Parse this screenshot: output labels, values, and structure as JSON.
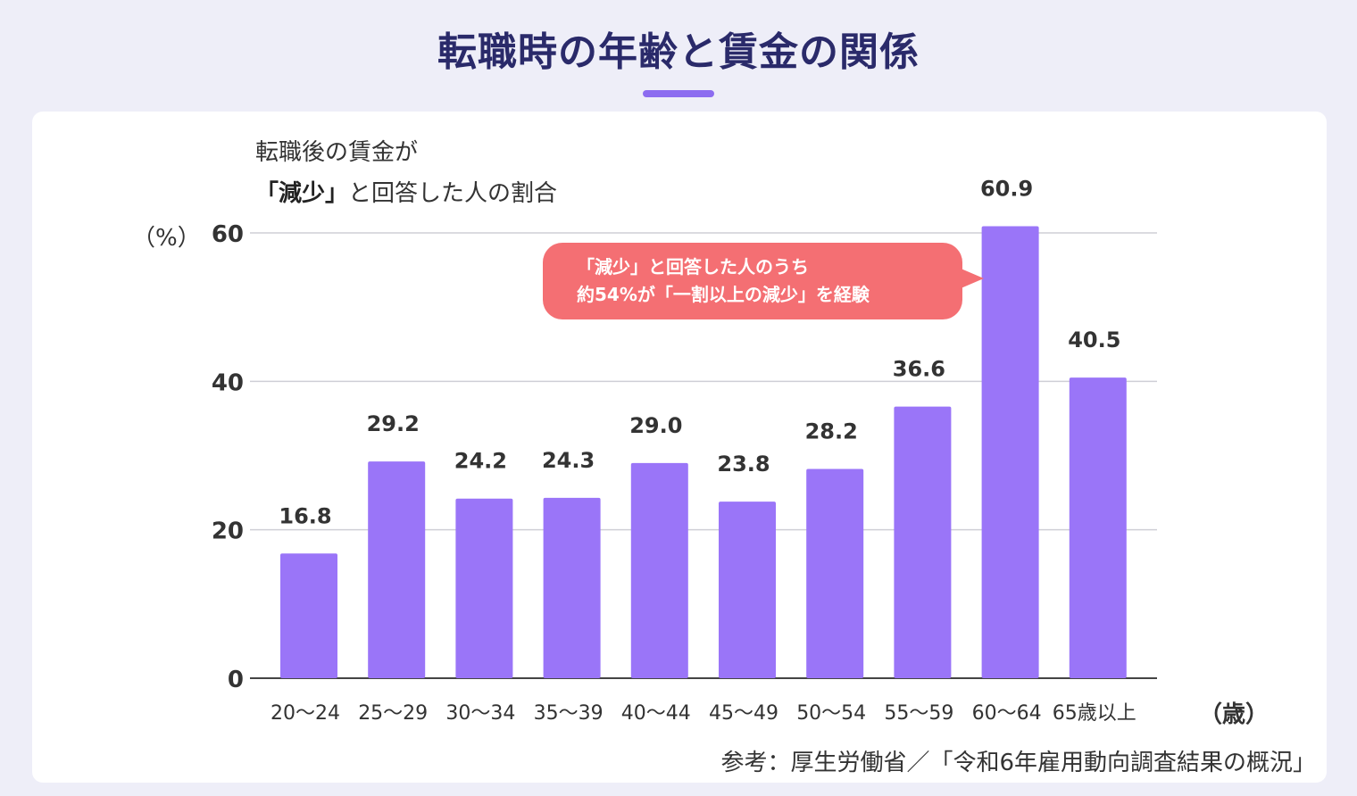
{
  "header": {
    "title": "転職時の年齢と賃金の関係"
  },
  "subtitle": {
    "line1": "転職後の賃金が",
    "line2_emphasis": "「減少」",
    "line2_rest": "と回答した人の割合"
  },
  "axis_units": {
    "y": "（%）",
    "x": "（歳）"
  },
  "callout": {
    "line1": "「減少」と回答した人のうち",
    "line2": "約54%が「一割以上の減少」を経験"
  },
  "source": "参考：厚生労働省／「令和6年雇用動向調査結果の概況」",
  "colors": {
    "bar": "#9a75f8",
    "callout": "#f46f73",
    "title": "#2a2a6a",
    "accent": "#8c6cf0"
  },
  "chart_data": {
    "type": "bar",
    "title": "転職時の年齢と賃金の関係",
    "ylabel": "（%）",
    "xlabel": "（歳）",
    "categories": [
      "20〜24",
      "25〜29",
      "30〜34",
      "35〜39",
      "40〜44",
      "45〜49",
      "50〜54",
      "55〜59",
      "60〜64",
      "65歳以上"
    ],
    "values": [
      16.8,
      29.2,
      24.2,
      24.3,
      29.0,
      23.8,
      28.2,
      36.6,
      60.9,
      40.5
    ],
    "value_labels": [
      "16.8",
      "29.2",
      "24.2",
      "24.3",
      "29.0",
      "23.8",
      "28.2",
      "36.6",
      "60.9",
      "40.5"
    ],
    "yticks": [
      0,
      20,
      40,
      60
    ],
    "ylim": [
      0,
      60
    ],
    "grid": true
  }
}
